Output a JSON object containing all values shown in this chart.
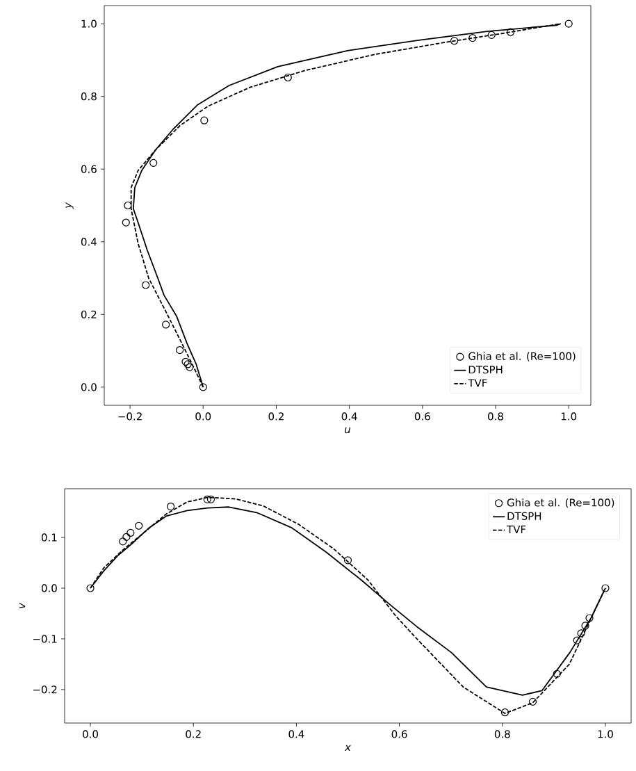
{
  "chart_data": [
    {
      "type": "line",
      "xlabel": "u",
      "ylabel": "y",
      "xlim": [
        -0.2705,
        1.0605
      ],
      "ylim": [
        -0.05,
        1.05
      ],
      "xticks": [
        {
          "value": -0.2,
          "label": "−0.2"
        },
        {
          "value": 0.0,
          "label": "0.0"
        },
        {
          "value": 0.2,
          "label": "0.2"
        },
        {
          "value": 0.4,
          "label": "0.4"
        },
        {
          "value": 0.6,
          "label": "0.6"
        },
        {
          "value": 0.8,
          "label": "0.8"
        },
        {
          "value": 1.0,
          "label": "1.0"
        }
      ],
      "yticks": [
        {
          "value": 0.0,
          "label": "0.0"
        },
        {
          "value": 0.2,
          "label": "0.2"
        },
        {
          "value": 0.4,
          "label": "0.4"
        },
        {
          "value": 0.6,
          "label": "0.6"
        },
        {
          "value": 0.8,
          "label": "0.8"
        },
        {
          "value": 1.0,
          "label": "1.0"
        }
      ],
      "legend": "bottom right",
      "grid": false,
      "series": [
        {
          "name": "Ghia et al. (Re=100)",
          "type": "scatter",
          "marker": "circle",
          "color": "#000000",
          "x": [
            1.0,
            0.841,
            0.789,
            0.737,
            0.687,
            0.232,
            0.003,
            -0.136,
            -0.206,
            -0.211,
            -0.157,
            -0.102,
            -0.064,
            -0.048,
            -0.042,
            -0.037,
            0.0
          ],
          "values": [
            1.0,
            0.977,
            0.969,
            0.961,
            0.953,
            0.852,
            0.734,
            0.617,
            0.5,
            0.453,
            0.281,
            0.172,
            0.102,
            0.07,
            0.063,
            0.055,
            0.0
          ]
        },
        {
          "name": "DTSPH",
          "line_style": "solid",
          "color": "#000000",
          "x": [
            0.0,
            -0.019,
            -0.044,
            -0.073,
            -0.107,
            -0.124,
            -0.153,
            -0.178,
            -0.191,
            -0.187,
            -0.168,
            -0.13,
            -0.082,
            -0.015,
            0.071,
            0.204,
            0.395,
            0.586,
            0.777,
            0.968,
            0.978
          ],
          "values": [
            0.0,
            0.063,
            0.12,
            0.196,
            0.253,
            0.3,
            0.377,
            0.453,
            0.491,
            0.549,
            0.596,
            0.653,
            0.71,
            0.777,
            0.83,
            0.882,
            0.926,
            0.954,
            0.979,
            0.996,
            1.0
          ]
        },
        {
          "name": "TVF",
          "line_style": "dashed",
          "color": "#000000",
          "x": [
            0.0,
            -0.025,
            -0.063,
            -0.101,
            -0.149,
            -0.178,
            -0.197,
            -0.197,
            -0.178,
            -0.13,
            -0.063,
            0.013,
            0.128,
            0.281,
            0.472,
            0.663,
            0.816,
            0.978
          ],
          "values": [
            0.0,
            0.053,
            0.13,
            0.206,
            0.3,
            0.396,
            0.491,
            0.549,
            0.596,
            0.653,
            0.72,
            0.773,
            0.825,
            0.872,
            0.916,
            0.949,
            0.973,
            1.0
          ]
        }
      ]
    },
    {
      "type": "line",
      "xlabel": "x",
      "ylabel": "v",
      "xlim": [
        -0.05,
        1.05
      ],
      "ylim": [
        -0.266,
        0.196
      ],
      "xticks": [
        {
          "value": 0.0,
          "label": "0.0"
        },
        {
          "value": 0.2,
          "label": "0.2"
        },
        {
          "value": 0.4,
          "label": "0.4"
        },
        {
          "value": 0.6,
          "label": "0.6"
        },
        {
          "value": 0.8,
          "label": "0.8"
        },
        {
          "value": 1.0,
          "label": "1.0"
        }
      ],
      "yticks": [
        {
          "value": -0.2,
          "label": "−0.2"
        },
        {
          "value": -0.1,
          "label": "−0.1"
        },
        {
          "value": 0.0,
          "label": "0.0"
        },
        {
          "value": 0.1,
          "label": "0.1"
        }
      ],
      "legend": "top right",
      "grid": false,
      "series": [
        {
          "name": "Ghia et al. (Re=100)",
          "type": "scatter",
          "marker": "circle",
          "color": "#000000",
          "x": [
            1.0,
            0.969,
            0.961,
            0.953,
            0.945,
            0.906,
            0.859,
            0.805,
            0.5,
            0.234,
            0.227,
            0.156,
            0.094,
            0.078,
            0.07,
            0.063,
            0.0
          ],
          "values": [
            0.0,
            -0.059,
            -0.074,
            -0.089,
            -0.103,
            -0.169,
            -0.224,
            -0.245,
            0.055,
            0.175,
            0.175,
            0.161,
            0.123,
            0.109,
            0.101,
            0.092,
            0.0
          ]
        },
        {
          "name": "DTSPH",
          "line_style": "solid",
          "color": "#000000",
          "x": [
            0.0,
            0.026,
            0.053,
            0.08,
            0.114,
            0.147,
            0.188,
            0.228,
            0.269,
            0.323,
            0.391,
            0.458,
            0.526,
            0.58,
            0.634,
            0.701,
            0.769,
            0.839,
            0.877,
            0.931,
            0.972,
            1.0
          ],
          "values": [
            0.0,
            0.034,
            0.064,
            0.087,
            0.119,
            0.142,
            0.153,
            0.158,
            0.16,
            0.149,
            0.119,
            0.071,
            0.016,
            -0.031,
            -0.076,
            -0.127,
            -0.195,
            -0.211,
            -0.202,
            -0.127,
            -0.059,
            0.0
          ]
        },
        {
          "name": "TVF",
          "line_style": "dashed",
          "color": "#000000",
          "x": [
            0.0,
            0.026,
            0.066,
            0.107,
            0.147,
            0.188,
            0.228,
            0.282,
            0.336,
            0.404,
            0.472,
            0.539,
            0.593,
            0.634,
            0.724,
            0.805,
            0.859,
            0.93,
            1.0
          ],
          "values": [
            0.0,
            0.04,
            0.078,
            0.112,
            0.146,
            0.17,
            0.179,
            0.176,
            0.162,
            0.126,
            0.078,
            0.016,
            -0.055,
            -0.1,
            -0.195,
            -0.247,
            -0.226,
            -0.15,
            0.0
          ]
        }
      ]
    }
  ]
}
